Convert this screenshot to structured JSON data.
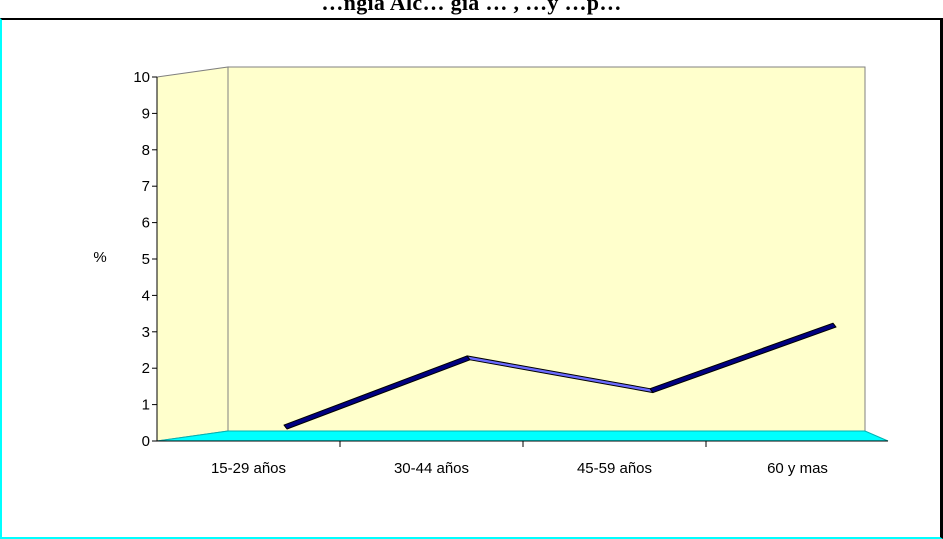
{
  "colors": {
    "wall": "#ffffcc",
    "floor": "#00ffff",
    "line_front": "#6b6bff",
    "line_dark": "#000080",
    "outline": "#000000"
  },
  "chart_data": {
    "type": "line",
    "style": "3d",
    "title": "…ngía Alc… gía … , …y …p…",
    "ylabel": "%",
    "xlabel": "",
    "categories": [
      "15-29 años",
      "30-44 años",
      "45-59 años",
      "60 y mas"
    ],
    "series": [
      {
        "values": [
          0.3,
          2.2,
          1.3,
          3.1
        ]
      }
    ],
    "ylim": [
      0,
      10
    ],
    "yticks": [
      0,
      1,
      2,
      3,
      4,
      5,
      6,
      7,
      8,
      9,
      10
    ],
    "grid": false,
    "legend": "none"
  }
}
